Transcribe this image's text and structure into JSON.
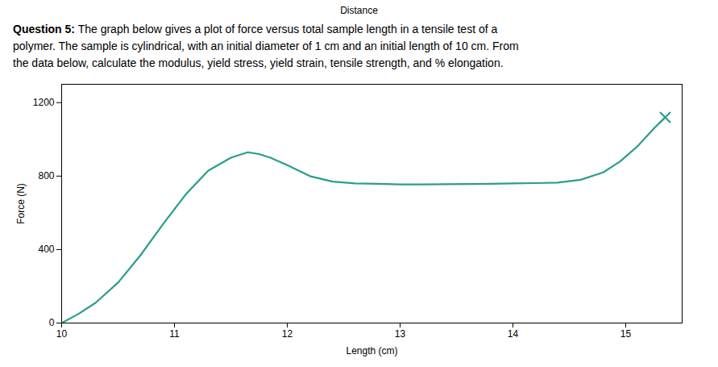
{
  "chart_data": {
    "type": "line",
    "title": "Distance",
    "annotations": [
      [
        "Question 5:",
        " The graph below gives a plot of force versus total sample length in a tensile test of a"
      ],
      [
        "polymer. The sample is cylindrical, with an initial diameter of 1 cm and an initial length of 10 cm. From"
      ],
      [
        "the data below, calculate the modulus, yield stress, yield strain, tensile strength, and % elongation."
      ]
    ],
    "xlabel": "Length (cm)",
    "ylabel": "Force (N)",
    "x": [
      10.0,
      10.15,
      10.3,
      10.5,
      10.7,
      10.9,
      11.1,
      11.3,
      11.5,
      11.65,
      11.75,
      11.85,
      12.0,
      12.2,
      12.4,
      12.6,
      12.8,
      13.0,
      13.2,
      13.4,
      13.6,
      13.8,
      14.0,
      14.2,
      14.4,
      14.6,
      14.8,
      14.95,
      15.1,
      15.25,
      15.35
    ],
    "series": [
      {
        "type": "line",
        "color": "#2a9d8f",
        "values": [
          0,
          50,
          110,
          220,
          370,
          540,
          700,
          830,
          900,
          930,
          920,
          900,
          860,
          800,
          770,
          760,
          758,
          755,
          755,
          756,
          757,
          758,
          760,
          762,
          765,
          780,
          820,
          880,
          960,
          1060,
          1120
        ]
      },
      {
        "type": "scatter",
        "marker": "x",
        "color": "#2a9d8f",
        "values": [
          null,
          null,
          null,
          null,
          null,
          null,
          null,
          null,
          null,
          null,
          null,
          null,
          null,
          null,
          null,
          null,
          null,
          null,
          null,
          null,
          null,
          null,
          null,
          null,
          null,
          null,
          null,
          null,
          null,
          null,
          1120
        ]
      }
    ],
    "xlim": [
      10,
      15.5
    ],
    "ylim": [
      0,
      1300
    ],
    "xticks": [
      10,
      11,
      12,
      13,
      14,
      15
    ],
    "yticks": [
      0,
      400,
      800,
      1200
    ],
    "grid": false
  }
}
